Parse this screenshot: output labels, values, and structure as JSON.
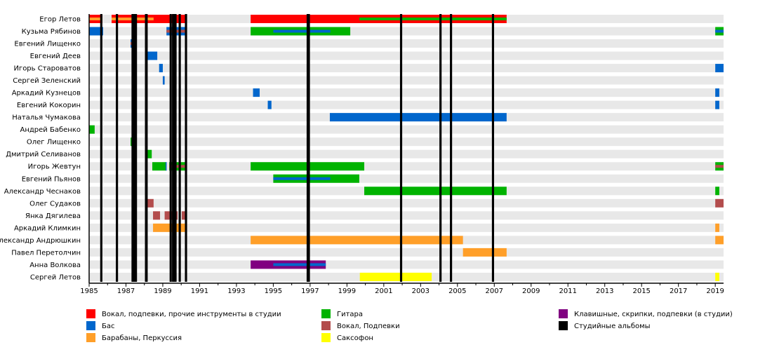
{
  "chart_data": {
    "type": "timeline",
    "xlim": [
      1985,
      2019.45
    ],
    "x_ticks": [
      1985,
      1987,
      1989,
      1991,
      1993,
      1995,
      1997,
      1999,
      2001,
      2003,
      2005,
      2007,
      2009,
      2011,
      2013,
      2015,
      2017,
      2019
    ],
    "colors": {
      "vocal_main": "#ff0000",
      "bass": "#0066cc",
      "drums": "#ff9f29",
      "guitar": "#00b300",
      "vocal_backing": "#b34d4d",
      "sax": "#ffff00",
      "keys": "#800080",
      "album": "#000000"
    },
    "legend": [
      {
        "key": "vocal_main",
        "label": "Вокал, подпевки, прочие инструменты в студии"
      },
      {
        "key": "bass",
        "label": "Бас"
      },
      {
        "key": "drums",
        "label": "Барабаны, Перкуссия"
      },
      {
        "key": "guitar",
        "label": "Гитара"
      },
      {
        "key": "vocal_backing",
        "label": "Вокал, Подпевки"
      },
      {
        "key": "sax",
        "label": "Саксофон"
      },
      {
        "key": "keys",
        "label": "Клавишные, скрипки, подпевки (в студии)"
      },
      {
        "key": "album",
        "label": "Студийные альбомы"
      }
    ],
    "members": [
      {
        "name": "Егор Летов",
        "bars": [
          [
            1985,
            1985.72,
            "vocal_main",
            "drums"
          ],
          [
            1986.22,
            1990.26,
            "vocal_main",
            null
          ],
          [
            1986.22,
            1988.5,
            null,
            "drums"
          ],
          [
            1993.77,
            2007.67,
            "vocal_main",
            null
          ],
          [
            1999.67,
            2007.67,
            null,
            "guitar"
          ]
        ]
      },
      {
        "name": "Кузьма Рябинов",
        "bars": [
          [
            1985,
            1985.76,
            "bass",
            null
          ],
          [
            1989.2,
            1990.26,
            "bass",
            "vocal_backing"
          ],
          [
            1993.77,
            1999.18,
            "guitar",
            null
          ],
          [
            1995,
            1998.1,
            null,
            "bass"
          ],
          [
            2019,
            2019.45,
            "guitar",
            "bass"
          ]
        ]
      },
      {
        "name": "Евгений Лищенко",
        "bars": [
          [
            1987.25,
            1987.35,
            "bass",
            "vocal_backing"
          ]
        ]
      },
      {
        "name": "Евгений Деев",
        "bars": [
          [
            1988.16,
            1988.7,
            "bass",
            null
          ]
        ]
      },
      {
        "name": "Игорь Староватов",
        "bars": [
          [
            1988.8,
            1989.0,
            "bass",
            null
          ],
          [
            2019,
            2019.45,
            "bass",
            null
          ]
        ]
      },
      {
        "name": "Сергей Зеленский",
        "bars": [
          [
            1989.0,
            1989.1,
            "bass",
            null
          ]
        ]
      },
      {
        "name": "Аркадий Кузнецов",
        "bars": [
          [
            1993.9,
            1994.26,
            "bass",
            null
          ],
          [
            2019,
            2019.22,
            "bass",
            null
          ]
        ]
      },
      {
        "name": "Евгений Кокорин",
        "bars": [
          [
            1994.7,
            1994.9,
            "bass",
            null
          ],
          [
            2019,
            2019.22,
            "bass",
            null
          ]
        ]
      },
      {
        "name": "Наталья Чумакова",
        "bars": [
          [
            1998.07,
            2007.67,
            "bass",
            null
          ]
        ]
      },
      {
        "name": "Андрей Бабенко",
        "bars": [
          [
            1985,
            1985.3,
            "guitar",
            null
          ]
        ]
      },
      {
        "name": "Олег Лищенко",
        "bars": [
          [
            1987.25,
            1987.32,
            "guitar",
            null
          ]
        ]
      },
      {
        "name": "Дмитрий Селиванов",
        "bars": [
          [
            1988.16,
            1988.4,
            "guitar",
            null
          ]
        ]
      },
      {
        "name": "Игорь Жевтун",
        "bars": [
          [
            1988.43,
            1989.2,
            "guitar",
            null
          ],
          [
            1989.15,
            1989.2,
            "bass",
            null
          ],
          [
            1989.35,
            1990.26,
            "guitar",
            "vocal_backing"
          ],
          [
            1993.77,
            1999.94,
            "guitar",
            null
          ],
          [
            2019,
            2019.45,
            "guitar",
            "vocal_backing"
          ]
        ]
      },
      {
        "name": "Евгений Пьянов",
        "bars": [
          [
            1995,
            1999.67,
            "guitar",
            null
          ],
          [
            1995,
            1998.1,
            null,
            "bass"
          ]
        ]
      },
      {
        "name": "Александр Чеснаков",
        "bars": [
          [
            1999.94,
            2007.67,
            "guitar",
            null
          ],
          [
            2019,
            2019.22,
            "guitar",
            null
          ]
        ]
      },
      {
        "name": "Олег Судаков",
        "bars": [
          [
            1988.16,
            1988.5,
            "vocal_backing",
            null
          ],
          [
            2019,
            2019.45,
            "vocal_backing",
            null
          ]
        ]
      },
      {
        "name": "Янка Дягилева",
        "bars": [
          [
            1988.47,
            1988.85,
            "vocal_backing",
            null
          ],
          [
            1989.1,
            1989.8,
            "vocal_backing",
            null
          ],
          [
            1990.03,
            1990.26,
            "vocal_backing",
            null
          ]
        ]
      },
      {
        "name": "Аркадий Климкин",
        "bars": [
          [
            1988.47,
            1990.26,
            "drums",
            null
          ],
          [
            2019,
            2019.22,
            "drums",
            null
          ]
        ]
      },
      {
        "name": "Александр Андрюшкин",
        "bars": [
          [
            1993.77,
            2005.3,
            "drums",
            null
          ],
          [
            2019,
            2019.45,
            "drums",
            null
          ]
        ]
      },
      {
        "name": "Павел Перетолчин",
        "bars": [
          [
            2005.3,
            2007.67,
            "drums",
            null
          ]
        ]
      },
      {
        "name": "Анна Волкова",
        "bars": [
          [
            1993.77,
            1997.85,
            "keys",
            null
          ],
          [
            1995,
            1997.85,
            null,
            "bass"
          ]
        ]
      },
      {
        "name": "Сергей Летов",
        "bars": [
          [
            1999.7,
            2003.6,
            "sax",
            null
          ],
          [
            2019,
            2019.22,
            "sax",
            null
          ]
        ]
      }
    ],
    "albums": [
      [
        1985.6,
        0.12
      ],
      [
        1986.45,
        0.12
      ],
      [
        1987.3,
        0.3
      ],
      [
        1988.03,
        0.15
      ],
      [
        1989.37,
        0.12
      ],
      [
        1989.5,
        0.25
      ],
      [
        1989.86,
        0.12
      ],
      [
        1990.2,
        0.12
      ],
      [
        1996.81,
        0.18
      ],
      [
        2001.88,
        0.12
      ],
      [
        2004.02,
        0.12
      ],
      [
        2004.59,
        0.12
      ],
      [
        2006.87,
        0.12
      ]
    ]
  }
}
